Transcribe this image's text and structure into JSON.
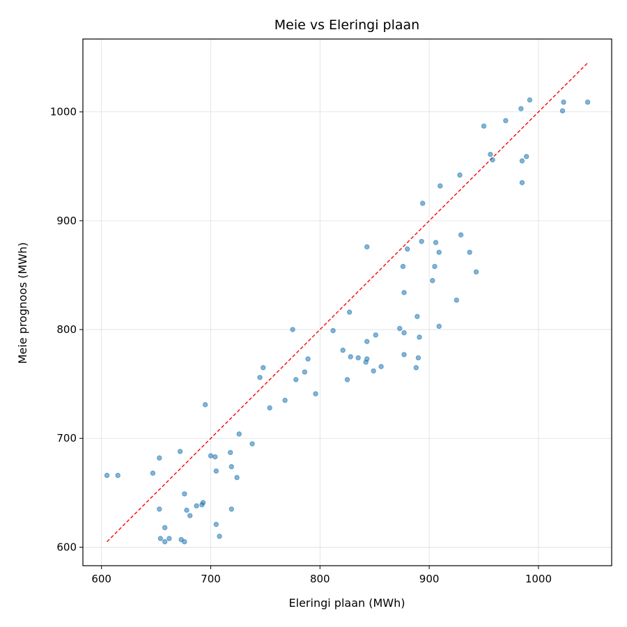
{
  "chart_data": {
    "type": "scatter",
    "title": "Meie vs Eleringi plaan",
    "xlabel": "Eleringi plaan (MWh)",
    "ylabel": "Meie prognoos (MWh)",
    "xlim": [
      583,
      1067
    ],
    "ylim": [
      583,
      1067
    ],
    "xticks": [
      600,
      700,
      800,
      900,
      1000
    ],
    "yticks": [
      600,
      700,
      800,
      900,
      1000
    ],
    "grid": true,
    "point_color": "#1f77b4",
    "reference_line": {
      "style": "dashed",
      "color": "#ff0000",
      "from": [
        605,
        605
      ],
      "to": [
        1045,
        1045
      ]
    },
    "series": [
      {
        "points": [
          [
            605,
            666
          ],
          [
            615,
            666
          ],
          [
            647,
            668
          ],
          [
            653,
            682
          ],
          [
            653,
            635
          ],
          [
            654,
            608
          ],
          [
            658,
            605
          ],
          [
            658,
            618
          ],
          [
            662,
            608
          ],
          [
            672,
            688
          ],
          [
            673,
            607
          ],
          [
            676,
            605
          ],
          [
            676,
            649
          ],
          [
            678,
            634
          ],
          [
            681,
            629
          ],
          [
            687,
            638
          ],
          [
            692,
            639
          ],
          [
            693,
            641
          ],
          [
            695,
            731
          ],
          [
            700,
            684
          ],
          [
            704,
            683
          ],
          [
            705,
            670
          ],
          [
            705,
            621
          ],
          [
            708,
            610
          ],
          [
            718,
            687
          ],
          [
            719,
            674
          ],
          [
            719,
            635
          ],
          [
            724,
            664
          ],
          [
            726,
            704
          ],
          [
            738,
            695
          ],
          [
            745,
            756
          ],
          [
            748,
            765
          ],
          [
            754,
            728
          ],
          [
            768,
            735
          ],
          [
            775,
            800
          ],
          [
            778,
            754
          ],
          [
            786,
            761
          ],
          [
            789,
            773
          ],
          [
            796,
            741
          ],
          [
            812,
            799
          ],
          [
            821,
            781
          ],
          [
            825,
            754
          ],
          [
            827,
            816
          ],
          [
            828,
            775
          ],
          [
            835,
            774
          ],
          [
            842,
            770
          ],
          [
            843,
            773
          ],
          [
            843,
            789
          ],
          [
            843,
            876
          ],
          [
            849,
            762
          ],
          [
            851,
            795
          ],
          [
            856,
            766
          ],
          [
            873,
            801
          ],
          [
            876,
            858
          ],
          [
            877,
            797
          ],
          [
            877,
            834
          ],
          [
            877,
            777
          ],
          [
            880,
            874
          ],
          [
            888,
            765
          ],
          [
            889,
            812
          ],
          [
            890,
            774
          ],
          [
            891,
            793
          ],
          [
            893,
            881
          ],
          [
            894,
            916
          ],
          [
            903,
            845
          ],
          [
            905,
            858
          ],
          [
            906,
            880
          ],
          [
            909,
            871
          ],
          [
            909,
            803
          ],
          [
            910,
            932
          ],
          [
            925,
            827
          ],
          [
            928,
            942
          ],
          [
            929,
            887
          ],
          [
            937,
            871
          ],
          [
            943,
            853
          ],
          [
            950,
            987
          ],
          [
            956,
            961
          ],
          [
            958,
            956
          ],
          [
            970,
            992
          ],
          [
            984,
            1003
          ],
          [
            985,
            955
          ],
          [
            985,
            935
          ],
          [
            989,
            959
          ],
          [
            992,
            1011
          ],
          [
            1022,
            1001
          ],
          [
            1023,
            1009
          ],
          [
            1045,
            1009
          ]
        ]
      }
    ]
  }
}
